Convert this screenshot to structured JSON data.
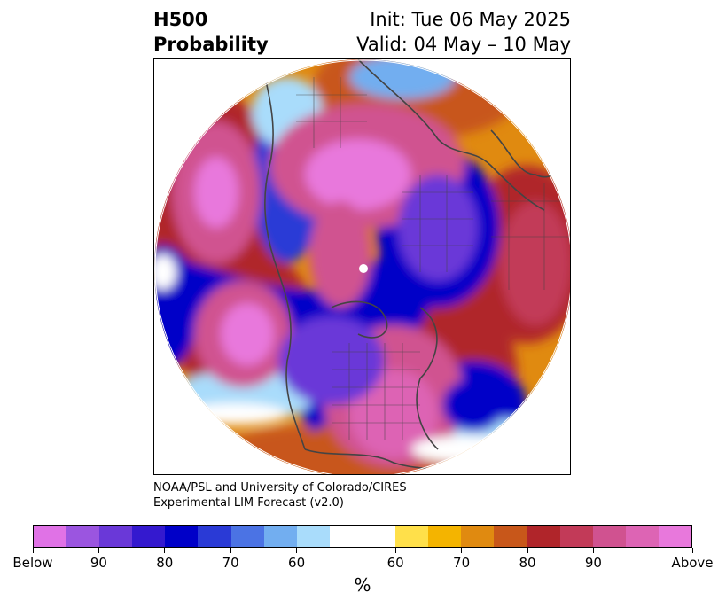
{
  "title": {
    "left_line1": "H500",
    "left_line2": "Probability",
    "right_line1": "Init: Tue 06 May 2025",
    "right_line2": "Valid: 04 May – 10 May"
  },
  "credit": {
    "line1": "NOAA/PSL and University of Colorado/CIRES",
    "line2": "Experimental LIM Forecast (v2.0)"
  },
  "colorbar": {
    "label": "%",
    "colors": [
      "#e072e6",
      "#9b55e0",
      "#6a38d8",
      "#3419cf",
      "#0000c8",
      "#2a3ad6",
      "#4b73e4",
      "#72aef0",
      "#a9dcfb",
      "#ffffff",
      "#ffe04a",
      "#f4b400",
      "#e08a10",
      "#c8571a",
      "#b0252a",
      "#c23a58",
      "#d05290",
      "#dd64b4",
      "#e878dc"
    ],
    "tick_labels": [
      "Below",
      "90",
      "80",
      "70",
      "60",
      "60",
      "70",
      "80",
      "90",
      "Above"
    ]
  },
  "map": {
    "projection": "north-polar-stereographic",
    "palette": {
      "below_strong": "#0000c8",
      "below_mid": "#4b73e4",
      "below_weak": "#a9dcfb",
      "neutral": "#ffffff",
      "above_weak": "#f4b400",
      "above_mid": "#c8571a",
      "above_strong": "#e878dc",
      "coastline": "#444444"
    }
  }
}
